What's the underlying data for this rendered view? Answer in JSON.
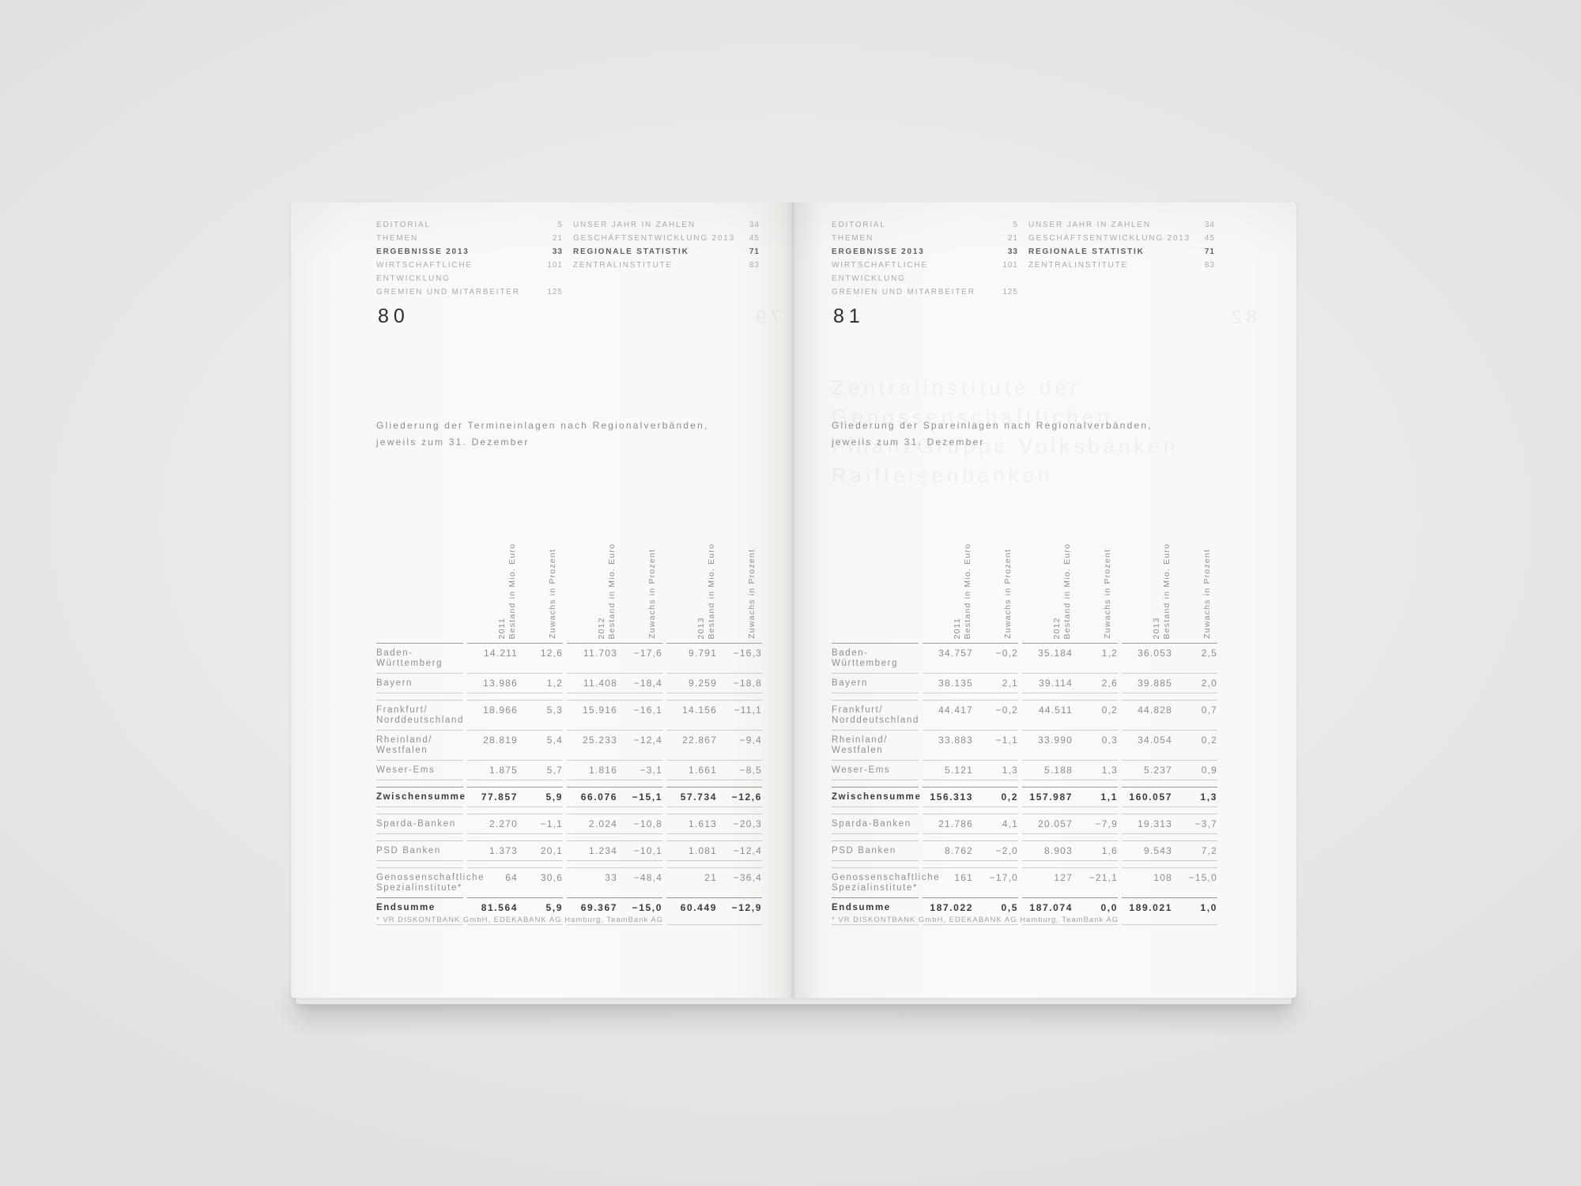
{
  "toc": {
    "left_column": [
      {
        "label": "EDITORIAL",
        "page": "5",
        "bold": false
      },
      {
        "label": "THEMEN",
        "page": "21",
        "bold": false
      },
      {
        "label": "ERGEBNISSE 2013",
        "page": "33",
        "bold": true
      },
      {
        "label": "WIRTSCHAFTLICHE ENTWICKLUNG",
        "page": "101",
        "bold": false
      },
      {
        "label": "GREMIEN UND MITARBEITER",
        "page": "125",
        "bold": false
      }
    ],
    "right_column": [
      {
        "label": "UNSER JAHR IN ZAHLEN",
        "page": "34",
        "bold": false
      },
      {
        "label": "GESCHÄFTSENTWICKLUNG 2013",
        "page": "45",
        "bold": false
      },
      {
        "label": "REGIONALE STATISTIK",
        "page": "71",
        "bold": true
      },
      {
        "label": "ZENTRALINSTITUTE",
        "page": "83",
        "bold": false
      }
    ]
  },
  "table_headers": [
    {
      "year": "2011",
      "label": "Bestand in Mio. Euro"
    },
    {
      "year": "",
      "label": "Zuwachs in Prozent"
    },
    {
      "year": "2012",
      "label": "Bestand in Mio. Euro"
    },
    {
      "year": "",
      "label": "Zuwachs in Prozent"
    },
    {
      "year": "2013",
      "label": "Bestand in Mio. Euro"
    },
    {
      "year": "",
      "label": "Zuwachs in Prozent"
    }
  ],
  "pages": [
    {
      "number": "80",
      "title_lines": [
        "Gliederung der Termineinlagen nach Regionalverbänden,",
        "jeweils zum 31. Dezember"
      ],
      "ghost_page_number": "79",
      "ghost_headline_lines": [],
      "groups": [
        {
          "rows": [
            {
              "label": [
                "Baden-",
                "Württemberg"
              ],
              "bold": false,
              "values": [
                "14.211",
                "12,6",
                "11.703",
                "−17,6",
                "9.791",
                "−16,3"
              ]
            },
            {
              "label": [
                "Bayern"
              ],
              "bold": false,
              "values": [
                "13.986",
                "1,2",
                "11.408",
                "−18,4",
                "9.259",
                "−18,8"
              ]
            }
          ]
        },
        {
          "rows": [
            {
              "label": [
                "Frankfurt/",
                "Norddeutschland"
              ],
              "bold": false,
              "values": [
                "18.966",
                "5,3",
                "15.916",
                "−16,1",
                "14.156",
                "−11,1"
              ]
            },
            {
              "label": [
                "Rheinland/",
                "Westfalen"
              ],
              "bold": false,
              "values": [
                "28.819",
                "5,4",
                "25.233",
                "−12,4",
                "22.867",
                "−9,4"
              ]
            },
            {
              "label": [
                "Weser-Ems"
              ],
              "bold": false,
              "values": [
                "1.875",
                "5,7",
                "1.816",
                "−3,1",
                "1.661",
                "−8,5"
              ]
            }
          ]
        },
        {
          "rows": [
            {
              "label": [
                "Zwischensumme"
              ],
              "bold": true,
              "values": [
                "77.857",
                "5,9",
                "66.076",
                "−15,1",
                "57.734",
                "−12,6"
              ]
            }
          ]
        },
        {
          "rows": [
            {
              "label": [
                "Sparda-Banken"
              ],
              "bold": false,
              "values": [
                "2.270",
                "−1,1",
                "2.024",
                "−10,8",
                "1.613",
                "−20,3"
              ]
            }
          ]
        },
        {
          "rows": [
            {
              "label": [
                "PSD Banken"
              ],
              "bold": false,
              "values": [
                "1.373",
                "20,1",
                "1.234",
                "−10,1",
                "1.081",
                "−12,4"
              ]
            }
          ]
        },
        {
          "rows": [
            {
              "label": [
                "Genossenschaftliche",
                "Spezialinstitute*"
              ],
              "bold": false,
              "values": [
                "64",
                "30,6",
                "33",
                "−48,4",
                "21",
                "−36,4"
              ]
            },
            {
              "label": [
                "Endsumme"
              ],
              "bold": true,
              "values": [
                "81.564",
                "5,9",
                "69.367",
                "−15,0",
                "60.449",
                "−12,9"
              ]
            }
          ]
        }
      ],
      "footnote": "* VR DISKONTBANK GmbH, EDEKABANK AG Hamburg, TeamBank AG"
    },
    {
      "number": "81",
      "title_lines": [
        "Gliederung der Spareinlagen nach Regionalverbänden,",
        "jeweils zum 31. Dezember"
      ],
      "ghost_page_number": "82",
      "ghost_headline_lines": [
        "Zentralinstitute der",
        "Genossenschaftlichen",
        "FinanzGruppe Volksbanken",
        "Raiffeisenbanken"
      ],
      "groups": [
        {
          "rows": [
            {
              "label": [
                "Baden-",
                "Württemberg"
              ],
              "bold": false,
              "values": [
                "34.757",
                "−0,2",
                "35.184",
                "1,2",
                "36.053",
                "2,5"
              ]
            },
            {
              "label": [
                "Bayern"
              ],
              "bold": false,
              "values": [
                "38.135",
                "2,1",
                "39.114",
                "2,6",
                "39.885",
                "2,0"
              ]
            }
          ]
        },
        {
          "rows": [
            {
              "label": [
                "Frankfurt/",
                "Norddeutschland"
              ],
              "bold": false,
              "values": [
                "44.417",
                "−0,2",
                "44.511",
                "0,2",
                "44.828",
                "0,7"
              ]
            },
            {
              "label": [
                "Rheinland/",
                "Westfalen"
              ],
              "bold": false,
              "values": [
                "33.883",
                "−1,1",
                "33.990",
                "0,3",
                "34.054",
                "0,2"
              ]
            },
            {
              "label": [
                "Weser-Ems"
              ],
              "bold": false,
              "values": [
                "5.121",
                "1,3",
                "5.188",
                "1,3",
                "5.237",
                "0,9"
              ]
            }
          ]
        },
        {
          "rows": [
            {
              "label": [
                "Zwischensumme"
              ],
              "bold": true,
              "values": [
                "156.313",
                "0,2",
                "157.987",
                "1,1",
                "160.057",
                "1,3"
              ]
            }
          ]
        },
        {
          "rows": [
            {
              "label": [
                "Sparda-Banken"
              ],
              "bold": false,
              "values": [
                "21.786",
                "4,1",
                "20.057",
                "−7,9",
                "19.313",
                "−3,7"
              ]
            }
          ]
        },
        {
          "rows": [
            {
              "label": [
                "PSD Banken"
              ],
              "bold": false,
              "values": [
                "8.762",
                "−2,0",
                "8.903",
                "1,6",
                "9.543",
                "7,2"
              ]
            }
          ]
        },
        {
          "rows": [
            {
              "label": [
                "Genossenschaftliche",
                "Spezialinstitute*"
              ],
              "bold": false,
              "values": [
                "161",
                "−17,0",
                "127",
                "−21,1",
                "108",
                "−15,0"
              ]
            },
            {
              "label": [
                "Endsumme"
              ],
              "bold": true,
              "values": [
                "187.022",
                "0,5",
                "187.074",
                "0,0",
                "189.021",
                "1,0"
              ]
            }
          ]
        }
      ],
      "footnote": "* VR DISKONTBANK GmbH, EDEKABANK AG Hamburg, TeamBank AG"
    }
  ],
  "colors": {
    "cover_teal": "#17b1c5",
    "cover_light_blue": "#a6cbe5",
    "cover_mid_blue": "#4a8cc2",
    "cover_dark_blue": "#2d7cb0",
    "cover_navy": "#1c5a88",
    "cover_pale_mint": "#dfe9e4"
  }
}
